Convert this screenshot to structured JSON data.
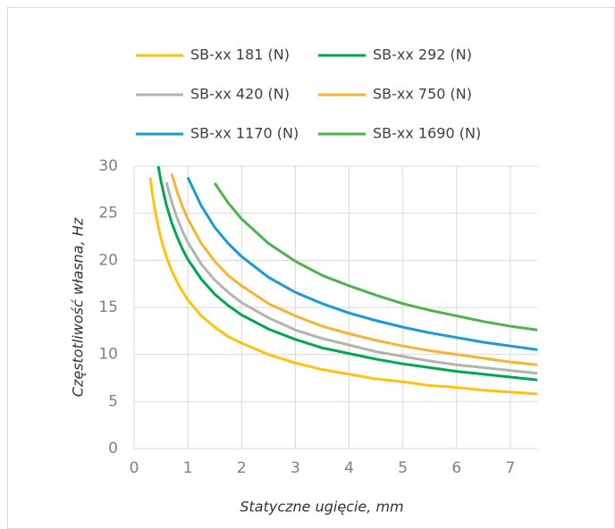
{
  "chart_data": {
    "type": "line",
    "x_label": "Statyczne ugięcie, mm",
    "y_label": "Częstotliwość własna, Hz",
    "x": [
      0.3,
      0.35,
      0.4,
      0.45,
      0.5,
      0.6,
      0.7,
      0.8,
      0.9,
      1,
      1.25,
      1.5,
      1.75,
      2,
      2.5,
      3,
      3.5,
      4,
      4.5,
      5,
      5.5,
      6,
      6.5,
      7,
      7.5
    ],
    "series": [
      {
        "name": "SB-xx 181 (N)",
        "color": "#ffc20e",
        "values": [
          28.8,
          26.7,
          25.0,
          23.6,
          22.3,
          20.4,
          18.9,
          17.7,
          16.7,
          15.8,
          14.1,
          12.9,
          11.9,
          11.2,
          10.0,
          9.1,
          8.4,
          7.9,
          7.4,
          7.1,
          6.7,
          6.5,
          6.2,
          6.0,
          5.8
        ]
      },
      {
        "name": "SB-xx 292 (N)",
        "color": "#00a651",
        "values": [
          null,
          null,
          null,
          30.0,
          28.4,
          25.9,
          24.0,
          22.5,
          21.2,
          20.1,
          18.0,
          16.4,
          15.2,
          14.2,
          12.7,
          11.6,
          10.7,
          10.1,
          9.5,
          9.0,
          8.6,
          8.2,
          7.9,
          7.6,
          7.3
        ]
      },
      {
        "name": "SB-xx 420 (N)",
        "color": "#b3b3b3",
        "values": [
          null,
          null,
          null,
          null,
          null,
          28.3,
          26.2,
          24.5,
          23.1,
          21.9,
          19.6,
          17.9,
          16.6,
          15.5,
          13.9,
          12.6,
          11.7,
          11.0,
          10.3,
          9.8,
          9.3,
          8.9,
          8.6,
          8.3,
          8.0
        ]
      },
      {
        "name": "SB-xx 750 (N)",
        "color": "#f7b334",
        "values": [
          null,
          null,
          null,
          null,
          null,
          null,
          29.2,
          27.3,
          25.7,
          24.4,
          21.8,
          19.9,
          18.4,
          17.3,
          15.4,
          14.1,
          13.0,
          12.2,
          11.5,
          10.9,
          10.4,
          10.0,
          9.6,
          9.2,
          8.9
        ]
      },
      {
        "name": "SB-xx 1170 (N)",
        "color": "#1a9ad6",
        "values": [
          null,
          null,
          null,
          null,
          null,
          null,
          null,
          null,
          null,
          28.8,
          25.8,
          23.5,
          21.8,
          20.4,
          18.2,
          16.6,
          15.4,
          14.4,
          13.6,
          12.9,
          12.3,
          11.8,
          11.3,
          10.9,
          10.5
        ]
      },
      {
        "name": "SB-xx 1690 (N)",
        "color": "#4cb448",
        "values": [
          null,
          null,
          null,
          null,
          null,
          null,
          null,
          null,
          null,
          null,
          null,
          28.2,
          26.1,
          24.4,
          21.8,
          19.9,
          18.4,
          17.3,
          16.3,
          15.4,
          14.7,
          14.1,
          13.5,
          13.0,
          12.6
        ]
      }
    ],
    "xlim": [
      0,
      7.5
    ],
    "xticks": [
      0,
      1,
      2,
      3,
      4,
      5,
      6,
      7
    ],
    "ylim": [
      0,
      30
    ],
    "yticks": [
      0,
      5,
      10,
      15,
      20,
      25,
      30
    ],
    "grid": true,
    "legend": "top"
  }
}
